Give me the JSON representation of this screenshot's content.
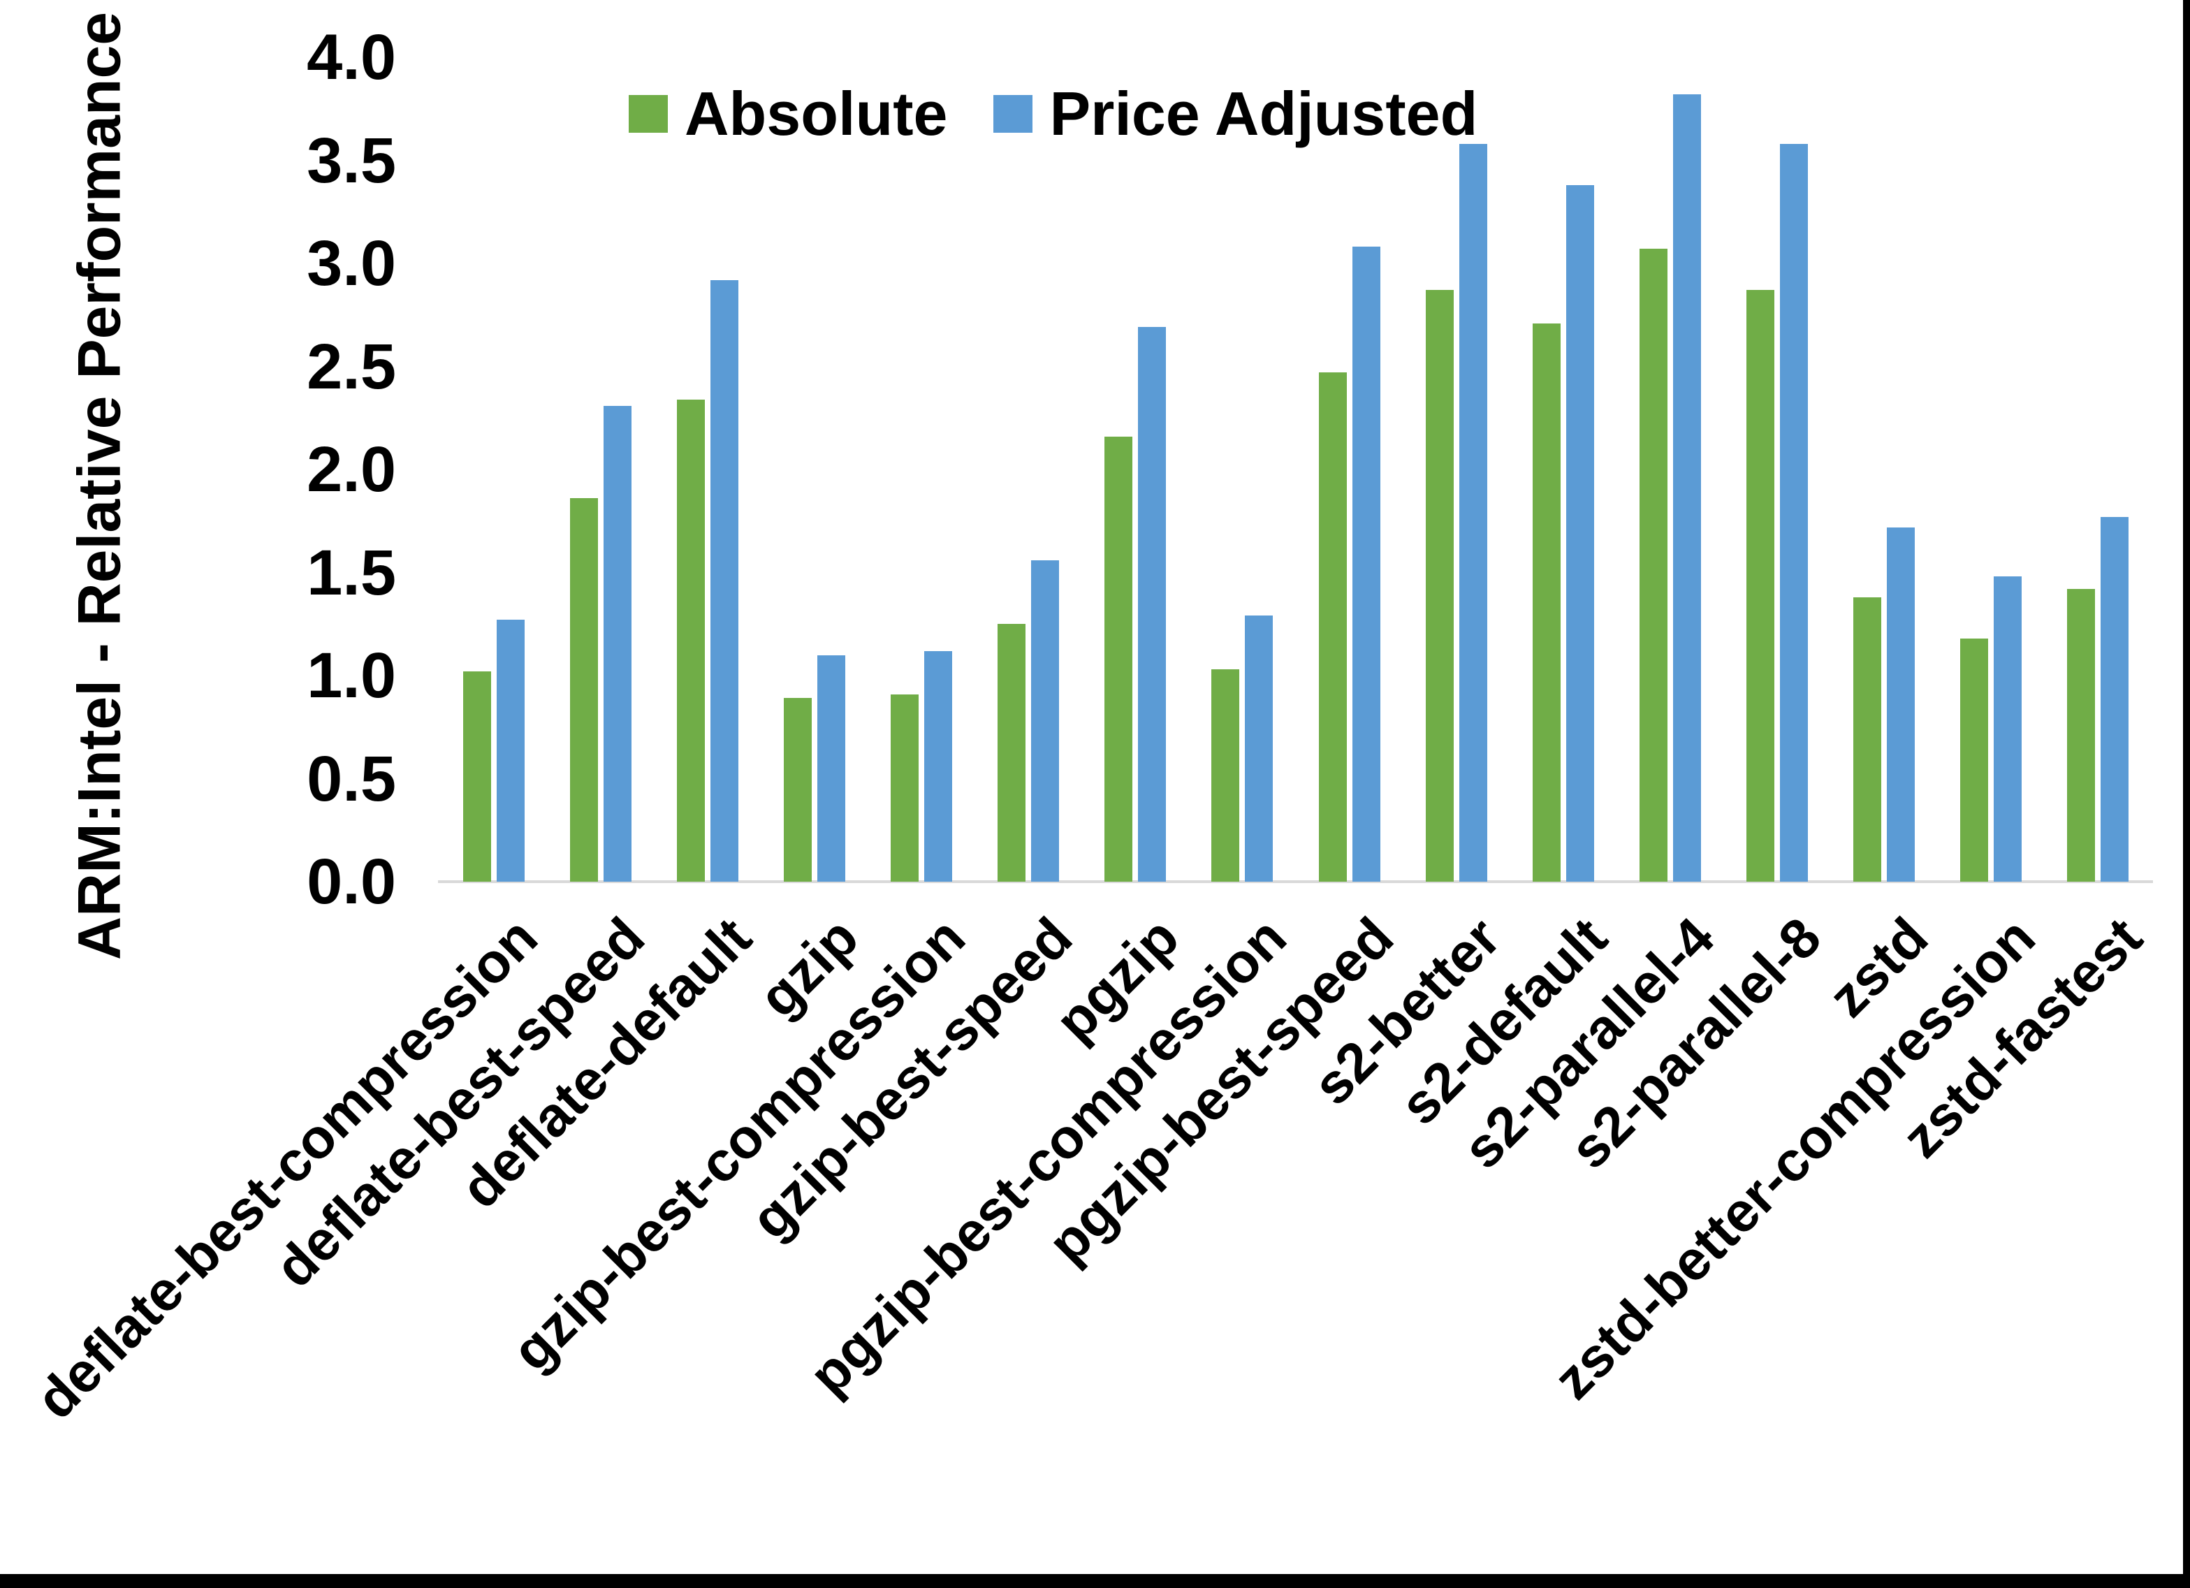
{
  "figure": {
    "y_axis_title": "ARM:Intel - Relative Performance",
    "background_color": "#FFFFFF",
    "axis_line_color": "#D9D9D9",
    "frame_border_color": "#000000"
  },
  "legend": {
    "position": "top",
    "items": [
      {
        "label": "Absolute",
        "color": "#70AD47"
      },
      {
        "label": "Price Adjusted",
        "color": "#5B9BD5"
      }
    ]
  },
  "chart_data": {
    "type": "bar",
    "title": "",
    "xlabel": "",
    "ylabel": "ARM:Intel - Relative Performance",
    "ylim": [
      0.0,
      4.0
    ],
    "ytick_step": 0.5,
    "ytick_labels": [
      "0.0",
      "0.5",
      "1.0",
      "1.5",
      "2.0",
      "2.5",
      "3.0",
      "3.5",
      "4.0"
    ],
    "grid": false,
    "legend_position": "top",
    "categories": [
      "deflate-best-compression",
      "deflate-best-speed",
      "deflate-default",
      "gzip",
      "gzip-best-compression",
      "gzip-best-speed",
      "pgzip",
      "pgzip-best-compression",
      "pgzip-best-speed",
      "s2-better",
      "s2-default",
      "s2-parallel-4",
      "s2-parallel-8",
      "zstd",
      "zstd-better-compression",
      "zstd-fastest"
    ],
    "series": [
      {
        "name": "Absolute",
        "color": "#70AD47",
        "values": [
          1.02,
          1.86,
          2.34,
          0.89,
          0.91,
          1.25,
          2.16,
          1.03,
          2.47,
          2.87,
          2.71,
          3.07,
          2.87,
          1.38,
          1.18,
          1.42
        ]
      },
      {
        "name": "Price Adjusted",
        "color": "#5B9BD5",
        "values": [
          1.27,
          2.31,
          2.92,
          1.1,
          1.12,
          1.56,
          2.69,
          1.29,
          3.08,
          3.58,
          3.38,
          3.82,
          3.58,
          1.72,
          1.48,
          1.77
        ]
      }
    ]
  }
}
